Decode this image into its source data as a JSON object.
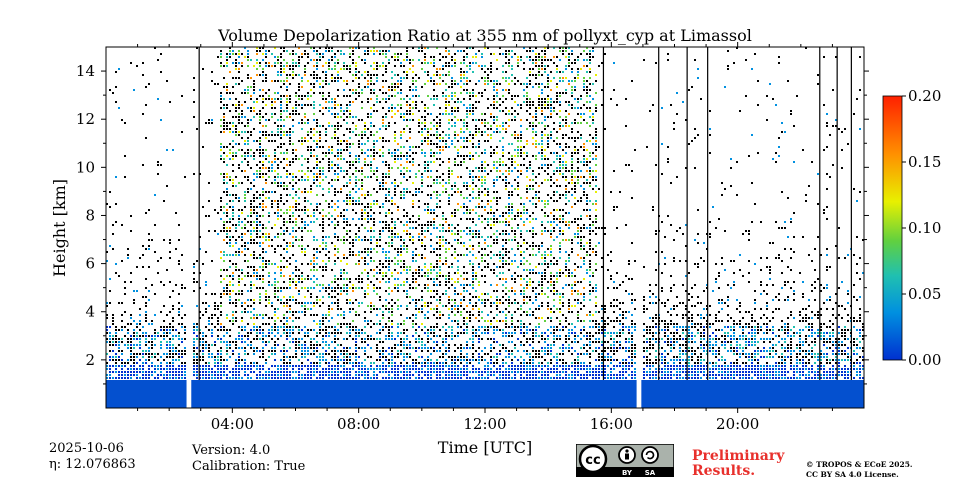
{
  "chart_data": {
    "type": "heatmap",
    "title": "Volume Depolarization Ratio at 355 nm of pollyxt_cyp at Limassol",
    "xlabel": "Time [UTC]",
    "ylabel": "Height [km]",
    "x_unit": "hours UTC",
    "xlim": [
      0,
      24
    ],
    "ylim": [
      0,
      15
    ],
    "x_ticks": [
      {
        "value": 4,
        "label": "04:00"
      },
      {
        "value": 8,
        "label": "08:00"
      },
      {
        "value": 12,
        "label": "12:00"
      },
      {
        "value": 16,
        "label": "16:00"
      },
      {
        "value": 20,
        "label": "20:00"
      }
    ],
    "y_ticks": [
      {
        "value": 2,
        "label": "2"
      },
      {
        "value": 4,
        "label": "4"
      },
      {
        "value": 6,
        "label": "6"
      },
      {
        "value": 8,
        "label": "8"
      },
      {
        "value": 10,
        "label": "10"
      },
      {
        "value": 12,
        "label": "12"
      },
      {
        "value": 14,
        "label": "14"
      }
    ],
    "colorbar": {
      "range": [
        0,
        0.2
      ],
      "ticks": [
        {
          "value": 0.0,
          "label": "0.00"
        },
        {
          "value": 0.05,
          "label": "0.05"
        },
        {
          "value": 0.1,
          "label": "0.10"
        },
        {
          "value": 0.15,
          "label": "0.15"
        },
        {
          "value": 0.2,
          "label": "0.20"
        }
      ],
      "colors": [
        "#0030d0",
        "#0090e0",
        "#20c0b0",
        "#60d040",
        "#e8f000",
        "#ff9000",
        "#ff2000"
      ]
    },
    "data_gaps_hours": [
      [
        2.55,
        2.7
      ],
      [
        16.8,
        16.95
      ]
    ],
    "night_high_noise_hours": [
      [
        0,
        2.55
      ],
      [
        2.7,
        3.6
      ],
      [
        17.0,
        24
      ]
    ],
    "day_noise_hours": [
      3.6,
      15.5
    ],
    "dense_aerosol_top_km": 3.5,
    "vertical_lines_hours": [
      2.95,
      15.75,
      17.5,
      18.4,
      19.05,
      22.6,
      23.15,
      23.6
    ]
  },
  "footer": {
    "date": "2025-10-06",
    "eta": "η: 12.076863",
    "version": "Version: 4.0",
    "calibration": "Calibration: True",
    "preliminary_line1": "Preliminary",
    "preliminary_line2": "Results.",
    "copyright_line1": "© TROPOS & ECoE 2025.",
    "copyright_line2": "CC BY SA 4.0 License.",
    "license_badge": {
      "by": "BY",
      "sa": "SA"
    }
  }
}
